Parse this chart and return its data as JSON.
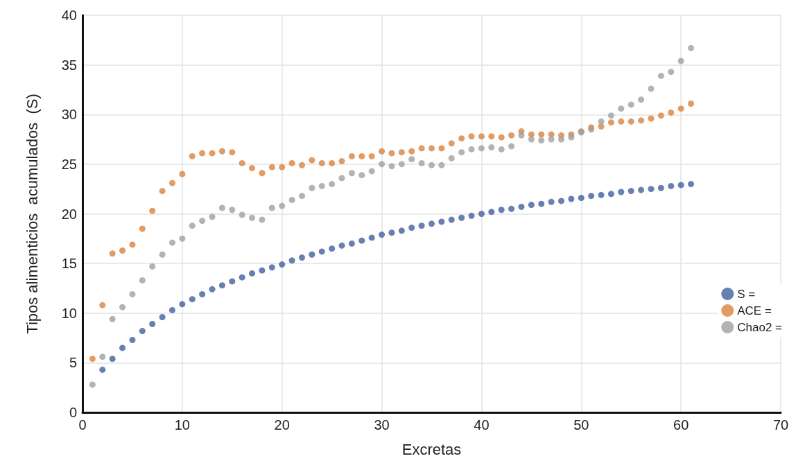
{
  "chart_data": {
    "type": "scatter",
    "xlabel": "Excretas",
    "ylabel": "Tipos alimenticios  acumulados  (S)",
    "xlim": [
      0,
      70
    ],
    "xticks": [
      0,
      10,
      20,
      30,
      40,
      50,
      60,
      70
    ],
    "ylim": [
      0,
      40
    ],
    "yticks": [
      0,
      5,
      10,
      15,
      20,
      25,
      30,
      35,
      40
    ],
    "grid": true,
    "legend": "right",
    "marker": "circle",
    "series": [
      {
        "name": "S =",
        "color": "#41609f",
        "x": [
          2,
          3,
          4,
          5,
          6,
          7,
          8,
          9,
          10,
          11,
          12,
          13,
          14,
          15,
          16,
          17,
          18,
          19,
          20,
          21,
          22,
          23,
          24,
          25,
          26,
          27,
          28,
          29,
          30,
          31,
          32,
          33,
          34,
          35,
          36,
          37,
          38,
          39,
          40,
          41,
          42,
          43,
          44,
          45,
          46,
          47,
          48,
          49,
          50,
          51,
          52,
          53,
          54,
          55,
          56,
          57,
          58,
          59,
          60,
          61
        ],
        "values": [
          4.3,
          5.4,
          6.5,
          7.3,
          8.2,
          8.9,
          9.6,
          10.3,
          10.9,
          11.4,
          11.9,
          12.4,
          12.8,
          13.2,
          13.6,
          14.0,
          14.3,
          14.6,
          14.9,
          15.3,
          15.6,
          15.9,
          16.2,
          16.5,
          16.8,
          17.0,
          17.3,
          17.6,
          17.9,
          18.1,
          18.3,
          18.6,
          18.8,
          19.0,
          19.2,
          19.4,
          19.6,
          19.8,
          20.0,
          20.2,
          20.4,
          20.5,
          20.7,
          20.9,
          21.0,
          21.2,
          21.3,
          21.5,
          21.6,
          21.8,
          21.9,
          22.0,
          22.2,
          22.3,
          22.4,
          22.5,
          22.6,
          22.8,
          22.9,
          23.0
        ]
      },
      {
        "name": "ACE =",
        "color": "#d9823f",
        "x": [
          1,
          2,
          3,
          4,
          5,
          6,
          7,
          8,
          9,
          10,
          11,
          12,
          13,
          14,
          15,
          16,
          17,
          18,
          19,
          20,
          21,
          22,
          23,
          24,
          25,
          26,
          27,
          28,
          29,
          30,
          31,
          32,
          33,
          34,
          35,
          36,
          37,
          38,
          39,
          40,
          41,
          42,
          43,
          44,
          45,
          46,
          47,
          48,
          49,
          50,
          51,
          52,
          53,
          54,
          55,
          56,
          57,
          58,
          59,
          60,
          61
        ],
        "values": [
          5.4,
          10.8,
          16.0,
          16.3,
          16.9,
          18.5,
          20.3,
          22.3,
          23.1,
          24.0,
          25.8,
          26.1,
          26.1,
          26.3,
          26.2,
          25.1,
          24.6,
          24.1,
          24.7,
          24.7,
          25.1,
          24.9,
          25.4,
          25.1,
          25.1,
          25.3,
          25.8,
          25.8,
          25.8,
          26.3,
          26.1,
          26.2,
          26.3,
          26.6,
          26.6,
          26.6,
          27.1,
          27.6,
          27.8,
          27.8,
          27.8,
          27.7,
          27.9,
          28.3,
          28.0,
          28.0,
          28.0,
          27.9,
          28.0,
          28.3,
          28.7,
          28.8,
          29.2,
          29.3,
          29.3,
          29.4,
          29.6,
          29.9,
          30.2,
          30.6,
          31.1
        ]
      },
      {
        "name": "Chao2 =",
        "color": "#a0a0a0",
        "x": [
          1,
          2,
          3,
          4,
          5,
          6,
          7,
          8,
          9,
          10,
          11,
          12,
          13,
          14,
          15,
          16,
          17,
          18,
          19,
          20,
          21,
          22,
          23,
          24,
          25,
          26,
          27,
          28,
          29,
          30,
          31,
          32,
          33,
          34,
          35,
          36,
          37,
          38,
          39,
          40,
          41,
          42,
          43,
          44,
          45,
          46,
          47,
          48,
          49,
          50,
          51,
          52,
          53,
          54,
          55,
          56,
          57,
          58,
          59,
          60,
          61
        ],
        "values": [
          2.8,
          5.6,
          9.4,
          10.6,
          11.9,
          13.3,
          14.7,
          15.9,
          17.1,
          17.5,
          18.8,
          19.3,
          19.7,
          20.6,
          20.4,
          19.9,
          19.6,
          19.4,
          20.6,
          20.8,
          21.4,
          21.8,
          22.6,
          22.8,
          23.0,
          23.6,
          24.1,
          23.9,
          24.3,
          25.0,
          24.8,
          25.0,
          25.5,
          25.1,
          24.9,
          24.9,
          25.6,
          26.2,
          26.5,
          26.6,
          26.7,
          26.5,
          26.8,
          27.9,
          27.5,
          27.4,
          27.5,
          27.5,
          27.7,
          28.2,
          28.5,
          29.3,
          29.9,
          30.6,
          31.0,
          31.5,
          32.6,
          33.9,
          34.3,
          35.4,
          36.7
        ]
      }
    ]
  }
}
